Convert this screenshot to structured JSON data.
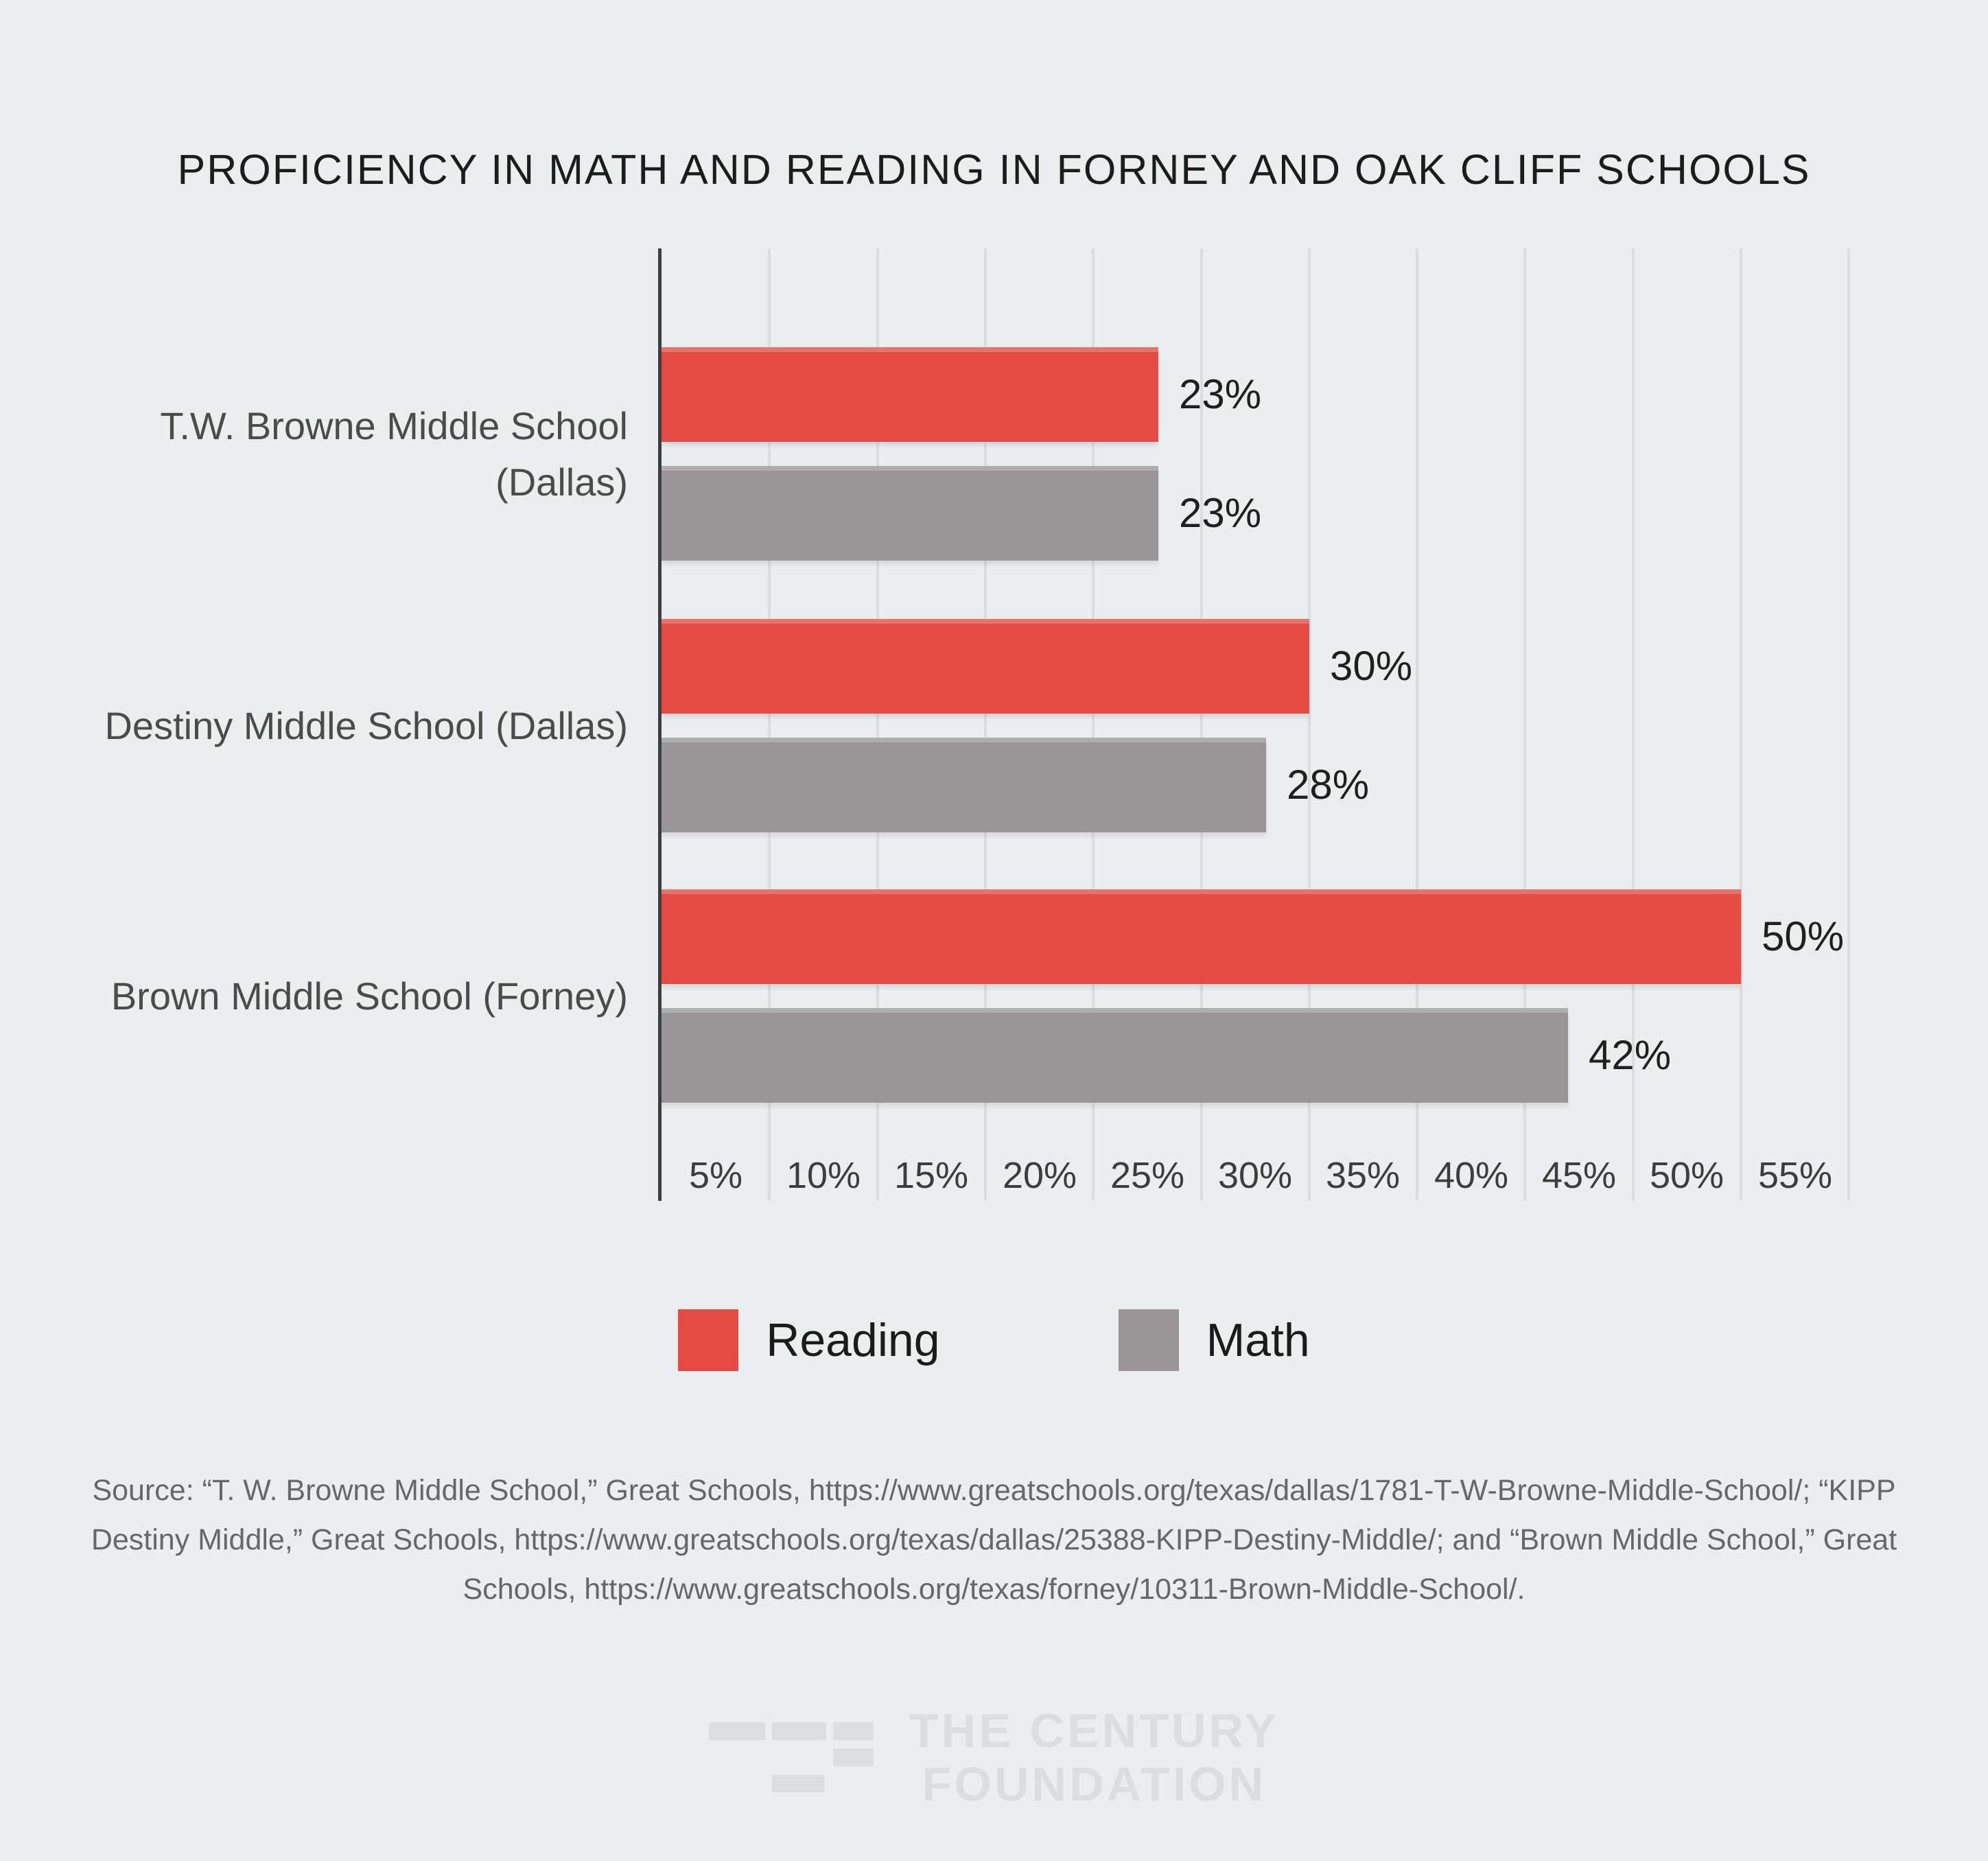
{
  "title": "PROFICIENCY IN MATH AND READING IN FORNEY AND OAK CLIFF SCHOOLS",
  "chart_data": {
    "type": "bar",
    "orientation": "horizontal",
    "title": "PROFICIENCY IN MATH AND READING IN FORNEY AND OAK CLIFF SCHOOLS",
    "categories": [
      "T.W. Browne Middle School\n(Dallas)",
      "Destiny Middle School (Dallas)",
      "Brown Middle School (Forney)"
    ],
    "series": [
      {
        "name": "Reading",
        "color": "#e54b42",
        "values": [
          23,
          30,
          50
        ]
      },
      {
        "name": "Math",
        "color": "#9a9697",
        "values": [
          23,
          28,
          42
        ]
      }
    ],
    "value_suffix": "%",
    "data_labels": [
      [
        "23%",
        "30%",
        "50%"
      ],
      [
        "23%",
        "28%",
        "42%"
      ]
    ],
    "x_ticks": [
      "5%",
      "10%",
      "15%",
      "20%",
      "25%",
      "30%",
      "35%",
      "40%",
      "45%",
      "50%",
      "55%"
    ],
    "xlim": [
      0,
      57.5
    ],
    "grid": "vertical",
    "legend_position": "bottom"
  },
  "legend": {
    "items": [
      {
        "label": "Reading",
        "color": "#e54b42"
      },
      {
        "label": "Math",
        "color": "#9a9697"
      }
    ]
  },
  "source": {
    "lines": [
      "Source: “T. W. Browne Middle School,” Great Schools, https://www.greatschools.org/texas/dallas/1781-T-W-Browne-Middle-School/; “KIPP",
      "Destiny Middle,” Great Schools, https://www.greatschools.org/texas/dallas/25388-KIPP-Destiny-Middle/; and “Brown Middle School,” Great",
      "Schools, https://www.greatschools.org/texas/forney/10311-Brown-Middle-School/."
    ]
  },
  "logo": {
    "line1": "THE CENTURY",
    "line2": "FOUNDATION"
  },
  "colors": {
    "background": "#ebeeef",
    "reading": "#e54b42",
    "math": "#9a9697",
    "gridline": "#d9dde0",
    "axis": "#3c3e40"
  }
}
